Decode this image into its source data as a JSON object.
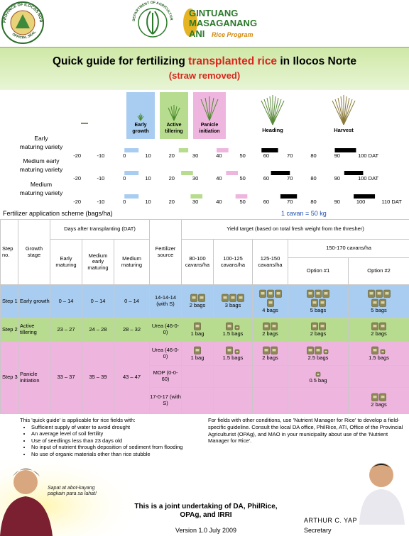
{
  "header": {
    "seal": [
      "PROVINCE OF ILOCOS NORTE",
      "OFFICIAL SEAL"
    ],
    "da": "DEPARTMENT OF AGRICULTURE",
    "program": [
      "GINTUANG",
      "MASAGANANG",
      "ANI",
      "Rice Program"
    ]
  },
  "title": {
    "parts": [
      "Quick guide for fertilizing ",
      "transplanted rice",
      " in Ilocos Norte"
    ],
    "subtitle": "(straw removed)"
  },
  "growth_chart": {
    "xlim": [
      -22,
      118
    ],
    "stages": [
      {
        "name": "Early growth",
        "color": "#a9cdf0"
      },
      {
        "name": "Active tillering",
        "color": "#b7dc8f"
      },
      {
        "name": "Panicle initiation",
        "color": "#eeb6de"
      },
      {
        "name": "Heading",
        "color": "#000000"
      },
      {
        "name": "Harvest",
        "color": "#000000"
      }
    ],
    "varieties": [
      {
        "name": [
          "Early",
          "maturing variety"
        ],
        "periods": [
          [
            0,
            6
          ],
          [
            23,
            27
          ],
          [
            39,
            44
          ],
          [
            58,
            65
          ],
          [
            89,
            98
          ]
        ],
        "xticks": [
          -20,
          -10,
          0,
          10,
          20,
          30,
          40,
          50,
          60,
          70,
          80,
          90,
          {
            "value": 100,
            "label": "100 DAT"
          }
        ]
      },
      {
        "name": [
          "Medium early",
          "maturing variety"
        ],
        "periods": [
          [
            0,
            6
          ],
          [
            24,
            29
          ],
          [
            43,
            48
          ],
          [
            62,
            70
          ],
          [
            93,
            101
          ]
        ],
        "xticks": [
          -20,
          -10,
          0,
          10,
          20,
          30,
          40,
          50,
          60,
          70,
          80,
          90,
          {
            "value": 100,
            "label": "100 DAT"
          }
        ]
      },
      {
        "name": [
          "Medium",
          "maturing variety"
        ],
        "periods": [
          [
            0,
            6
          ],
          [
            28,
            33
          ],
          [
            47,
            52
          ],
          [
            66,
            73
          ],
          [
            97,
            106
          ]
        ],
        "xticks": [
          -20,
          -10,
          0,
          10,
          20,
          30,
          40,
          50,
          60,
          70,
          80,
          90,
          100,
          {
            "value": 110,
            "label": "110 DAT"
          }
        ]
      }
    ]
  },
  "fertilizer": {
    "title": "Fertilizer application scheme (bags/ha)",
    "note": "1 cavan = 50 kg",
    "headers": {
      "step": "Step no.",
      "stage": "Growth stage",
      "dat": "Days after transplanting (DAT)",
      "early": "Early maturing",
      "medium_early": "Medium early maturing",
      "medium": "Medium maturing",
      "source": "Fertilizer source",
      "yield": "Yield target (based on total fresh weight from the thresher)",
      "y1": "80-100 cavans/ha",
      "y2": "100-125 cavans/ha",
      "y3": "125-150 cavans/ha",
      "y4": "150-170 cavans/ha",
      "opt1": "Option #1",
      "opt2": "Option #2"
    },
    "rows": [
      {
        "step": "Step 1",
        "stage": "Early growth",
        "color": "#a9cdf0",
        "dat": [
          "0 – 14",
          "0 – 14",
          "0 – 14"
        ],
        "applications": [
          {
            "source": "14-14-14 (with S)",
            "doses": [
              {
                "bags": 2,
                "label": "2 bags"
              },
              {
                "bags": 3,
                "label": "3 bags"
              },
              {
                "bags": 4,
                "label": "4 bags"
              },
              {
                "bags": 5,
                "label": "5 bags"
              },
              {
                "bags": 5,
                "label": "5 bags"
              }
            ]
          }
        ]
      },
      {
        "step": "Step 2",
        "stage": "Active tillering",
        "color": "#b7dc8f",
        "dat": [
          "23 – 27",
          "24 – 28",
          "28 – 32"
        ],
        "applications": [
          {
            "source": "Urea (46-0-0)",
            "doses": [
              {
                "bags": 1,
                "label": "1 bag"
              },
              {
                "bags": 1.5,
                "label": "1.5 bags"
              },
              {
                "bags": 2,
                "label": "2 bags"
              },
              {
                "bags": 2,
                "label": "2 bags"
              },
              {
                "bags": 2,
                "label": "2 bags"
              }
            ]
          }
        ]
      },
      {
        "step": "Step 3",
        "stage": "Panicle initiation",
        "color": "#eeb6de",
        "dat": [
          "33 – 37",
          "35 – 39",
          "43 – 47"
        ],
        "applications": [
          {
            "source": "Urea (46-0-0)",
            "doses": [
              {
                "bags": 1,
                "label": "1 bag"
              },
              {
                "bags": 1.5,
                "label": "1.5 bags"
              },
              {
                "bags": 2,
                "label": "2 bags"
              },
              {
                "bags": 2.5,
                "label": "2.5 bags"
              },
              {
                "bags": 1.5,
                "label": "1.5 bags"
              }
            ]
          },
          {
            "source": "MOP (0-0-60)",
            "doses": [
              null,
              null,
              null,
              {
                "bags": 0.5,
                "label": "0.5 bag"
              },
              null
            ]
          },
          {
            "source": "17-0-17 (with S)",
            "doses": [
              null,
              null,
              null,
              null,
              {
                "bags": 2,
                "label": "2 bags"
              }
            ]
          }
        ]
      }
    ]
  },
  "footer": {
    "intro": "This 'quick guide' is applicable for rice fields with:",
    "bullets": [
      "Sufficient supply of water to avoid drought",
      "An average level of soil fertility",
      "Use of seedlings less than 23 days old",
      "No input of nutrient through deposition of sediment from flooding",
      "No use of organic materials other than rice stubble"
    ],
    "other": "For fields with other conditions, use 'Nutrient Manager for Rice' to develop a field-specific guideline. Consult the local DA office, PhilRice, ATI, Office of the Provincial Agriculturist (OPAg), and MAO in your municipality about use of the 'Nutrient Manager for Rice'.",
    "slogan": "Sapat at abot-kayang pagkain para sa lahat!",
    "joint": "This is a joint undertaking of DA, PhilRice, OPAg, and IRRI",
    "version": "Version 1.0 July 2009",
    "name": "ARTHUR C. YAP",
    "position": "Secretary"
  }
}
